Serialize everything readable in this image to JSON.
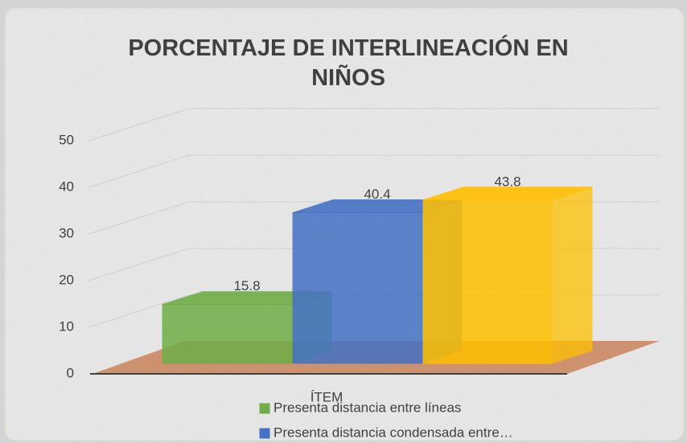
{
  "chart_data": {
    "type": "bar3d",
    "title": "PORCENTAJE DE INTERLINEACIÓN EN NIÑOS",
    "categories": [
      "ÍTEM"
    ],
    "series": [
      {
        "name": "Presenta distancia entre líneas",
        "color": "#70ad47",
        "values": [
          15.8
        ]
      },
      {
        "name": "Presenta distancia condensada entre…",
        "color": "#4472c4",
        "values": [
          40.4
        ]
      },
      {
        "color": "#ffc000",
        "values": [
          43.8
        ]
      }
    ],
    "ylim": [
      0,
      50
    ],
    "yticks": [
      0,
      10,
      20,
      30,
      40,
      50
    ],
    "grid": true,
    "data_labels": true,
    "legend": "bottom"
  }
}
